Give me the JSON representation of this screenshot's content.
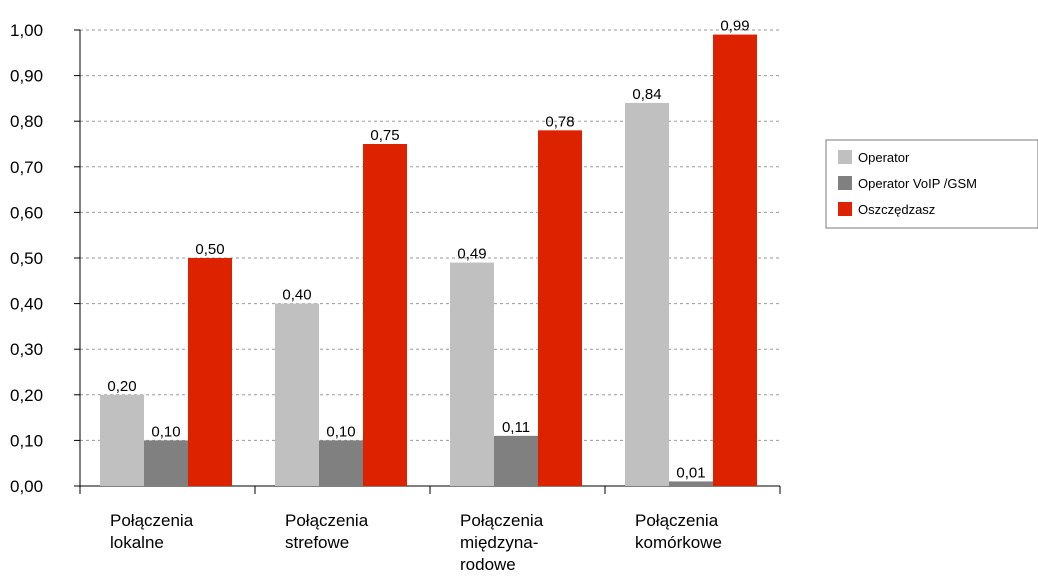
{
  "chart_data": {
    "type": "bar",
    "categories": [
      [
        "Połączenia",
        "lokalne"
      ],
      [
        "Połączenia",
        "strefowe"
      ],
      [
        "Połączenia",
        "międzyna-",
        "rodowe"
      ],
      [
        "Połączenia",
        "komórkowe"
      ]
    ],
    "series": [
      {
        "name": "Operator",
        "values": [
          0.2,
          0.4,
          0.49,
          0.84
        ],
        "labels": [
          "0,20",
          "0,40",
          "0,49",
          "0,84"
        ]
      },
      {
        "name": "Operator VoIP /GSM",
        "values": [
          0.1,
          0.1,
          0.11,
          0.01
        ],
        "labels": [
          "0,10",
          "0,10",
          "0,11",
          "0,01"
        ]
      },
      {
        "name": "Oszczędzasz",
        "values": [
          0.5,
          0.75,
          0.78,
          0.99
        ],
        "labels": [
          "0,50",
          "0,75",
          "0,78",
          "0,99"
        ]
      }
    ],
    "colors": [
      "#c0c0c0",
      "#808080",
      "#dd2200"
    ],
    "ylim": [
      0,
      1.0
    ],
    "yticks": [
      "0,00",
      "0,10",
      "0,20",
      "0,30",
      "0,40",
      "0,50",
      "0,60",
      "0,70",
      "0,80",
      "0,90",
      "1,00"
    ],
    "grid": true,
    "legend": "right"
  }
}
